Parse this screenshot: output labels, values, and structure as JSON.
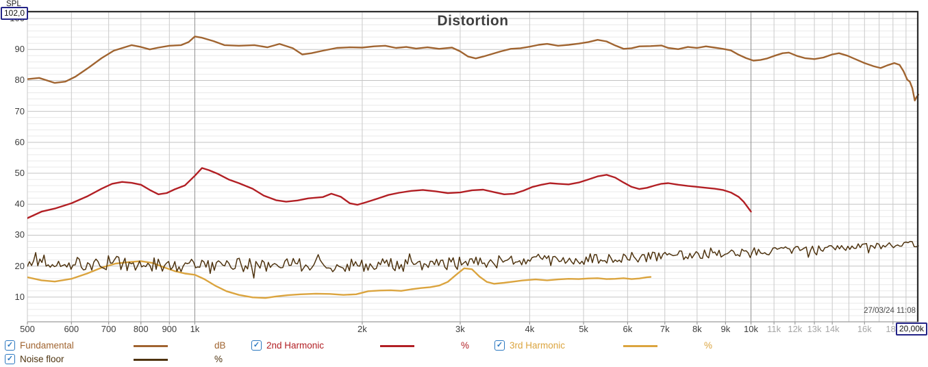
{
  "title": "Distortion",
  "date_label": "27/03/24 11:08",
  "y_axis": {
    "title": "SPL",
    "max_box": "102,0",
    "min": 2,
    "max": 102,
    "ticks": [
      100,
      90,
      80,
      70,
      60,
      50,
      40,
      30,
      20,
      10
    ],
    "minor_step": 2
  },
  "x_axis": {
    "max_box": "20,00k",
    "min": 500,
    "max": 20000,
    "scale": "log",
    "gridline_freqs": [
      500,
      600,
      700,
      800,
      900,
      1000,
      2000,
      3000,
      4000,
      5000,
      6000,
      7000,
      8000,
      9000,
      10000,
      11000,
      12000,
      13000,
      14000,
      15000,
      16000,
      17000,
      18000,
      19000,
      20000
    ],
    "dark_gridlines": [
      1000,
      10000
    ],
    "ticks": [
      {
        "f": 500,
        "label": "500"
      },
      {
        "f": 600,
        "label": "600"
      },
      {
        "f": 700,
        "label": "700"
      },
      {
        "f": 800,
        "label": "800"
      },
      {
        "f": 900,
        "label": "900"
      },
      {
        "f": 1000,
        "label": "1k"
      },
      {
        "f": 2000,
        "label": "2k"
      },
      {
        "f": 3000,
        "label": "3k"
      },
      {
        "f": 4000,
        "label": "4k"
      },
      {
        "f": 5000,
        "label": "5k"
      },
      {
        "f": 6000,
        "label": "6k"
      },
      {
        "f": 7000,
        "label": "7k"
      },
      {
        "f": 8000,
        "label": "8k"
      },
      {
        "f": 9000,
        "label": "9k"
      },
      {
        "f": 10000,
        "label": "10k"
      },
      {
        "f": 11000,
        "label": "11k",
        "muted": true
      },
      {
        "f": 12000,
        "label": "12k",
        "muted": true
      },
      {
        "f": 13000,
        "label": "13k",
        "muted": true
      },
      {
        "f": 14000,
        "label": "14k",
        "muted": true
      },
      {
        "f": 16000,
        "label": "16k",
        "muted": true
      },
      {
        "f": 18000,
        "label": "18k",
        "muted": true
      }
    ]
  },
  "colors": {
    "grid_minor": "#e9e9e9",
    "grid_major": "#c3c3c3",
    "grid_vert": "#c9c9c9",
    "grid_vert_dark": "#8f8f8f",
    "border_dark": "#2e2e2e",
    "axis_line": "#9a9a9a",
    "checkbox_blue": "#2a77c0"
  },
  "legend": {
    "items": [
      {
        "label": "Fundamental",
        "unit": "dB",
        "checked": true,
        "row": 0,
        "col": 0
      },
      {
        "label": "2nd Harmonic",
        "unit": "%",
        "checked": true,
        "row": 0,
        "col": 1
      },
      {
        "label": "3rd Harmonic",
        "unit": "%",
        "checked": true,
        "row": 0,
        "col": 2
      },
      {
        "label": "Noise floor",
        "unit": "%",
        "checked": true,
        "row": 1,
        "col": 0
      }
    ]
  },
  "chart_data": {
    "type": "line",
    "title": "Distortion",
    "x_scale": "log",
    "x_range": [
      500,
      20000
    ],
    "y_range": [
      2,
      102
    ],
    "ylabel": "SPL",
    "grid": true,
    "legend_position": "bottom",
    "series": [
      {
        "name": "Fundamental",
        "unit": "dB",
        "color": "#a06430",
        "width": 2.4,
        "points": [
          [
            500,
            80.4
          ],
          [
            525,
            80.8
          ],
          [
            560,
            79.2
          ],
          [
            585,
            79.6
          ],
          [
            610,
            81.2
          ],
          [
            645,
            84.2
          ],
          [
            680,
            87.2
          ],
          [
            715,
            89.6
          ],
          [
            745,
            90.6
          ],
          [
            770,
            91.4
          ],
          [
            800,
            90.8
          ],
          [
            830,
            90.0
          ],
          [
            860,
            90.6
          ],
          [
            900,
            91.2
          ],
          [
            945,
            91.4
          ],
          [
            975,
            92.4
          ],
          [
            1000,
            94.2
          ],
          [
            1030,
            93.8
          ],
          [
            1080,
            92.7
          ],
          [
            1130,
            91.4
          ],
          [
            1200,
            91.2
          ],
          [
            1280,
            91.4
          ],
          [
            1350,
            90.7
          ],
          [
            1420,
            91.8
          ],
          [
            1500,
            90.4
          ],
          [
            1560,
            88.4
          ],
          [
            1620,
            88.8
          ],
          [
            1700,
            89.6
          ],
          [
            1800,
            90.5
          ],
          [
            1900,
            90.7
          ],
          [
            2000,
            90.6
          ],
          [
            2100,
            91.0
          ],
          [
            2200,
            91.2
          ],
          [
            2300,
            90.5
          ],
          [
            2400,
            90.8
          ],
          [
            2500,
            90.3
          ],
          [
            2620,
            90.7
          ],
          [
            2750,
            90.2
          ],
          [
            2900,
            90.6
          ],
          [
            3000,
            89.4
          ],
          [
            3100,
            87.7
          ],
          [
            3200,
            87.1
          ],
          [
            3300,
            87.7
          ],
          [
            3400,
            88.4
          ],
          [
            3550,
            89.4
          ],
          [
            3700,
            90.2
          ],
          [
            3850,
            90.4
          ],
          [
            4000,
            90.9
          ],
          [
            4150,
            91.5
          ],
          [
            4300,
            91.8
          ],
          [
            4500,
            91.2
          ],
          [
            4700,
            91.5
          ],
          [
            4900,
            91.9
          ],
          [
            5100,
            92.4
          ],
          [
            5300,
            93.1
          ],
          [
            5500,
            92.6
          ],
          [
            5700,
            91.3
          ],
          [
            5900,
            90.2
          ],
          [
            6100,
            90.4
          ],
          [
            6300,
            91.0
          ],
          [
            6600,
            91.1
          ],
          [
            6900,
            91.3
          ],
          [
            7100,
            90.5
          ],
          [
            7400,
            90.1
          ],
          [
            7700,
            90.8
          ],
          [
            8000,
            90.5
          ],
          [
            8300,
            91.0
          ],
          [
            8600,
            90.6
          ],
          [
            8900,
            90.2
          ],
          [
            9200,
            89.7
          ],
          [
            9500,
            88.3
          ],
          [
            9800,
            87.2
          ],
          [
            10100,
            86.4
          ],
          [
            10400,
            86.6
          ],
          [
            10700,
            87.1
          ],
          [
            11000,
            87.9
          ],
          [
            11400,
            88.8
          ],
          [
            11700,
            89.0
          ],
          [
            12100,
            87.9
          ],
          [
            12500,
            87.2
          ],
          [
            13000,
            86.9
          ],
          [
            13500,
            87.4
          ],
          [
            14000,
            88.4
          ],
          [
            14400,
            88.8
          ],
          [
            14900,
            88.0
          ],
          [
            15400,
            86.9
          ],
          [
            16000,
            85.6
          ],
          [
            16600,
            84.6
          ],
          [
            17100,
            84.0
          ],
          [
            17600,
            84.9
          ],
          [
            18100,
            85.6
          ],
          [
            18500,
            85.0
          ],
          [
            18800,
            83.0
          ],
          [
            19100,
            80.2
          ],
          [
            19300,
            79.6
          ],
          [
            19500,
            77.5
          ],
          [
            19700,
            73.5
          ],
          [
            19850,
            74.6
          ],
          [
            20000,
            75.4
          ]
        ]
      },
      {
        "name": "2nd Harmonic",
        "unit": "%",
        "color": "#b21f24",
        "width": 2.4,
        "points": [
          [
            500,
            35.5
          ],
          [
            530,
            37.6
          ],
          [
            560,
            38.6
          ],
          [
            600,
            40.3
          ],
          [
            640,
            42.5
          ],
          [
            680,
            45.0
          ],
          [
            710,
            46.6
          ],
          [
            740,
            47.2
          ],
          [
            770,
            46.9
          ],
          [
            800,
            46.3
          ],
          [
            830,
            44.6
          ],
          [
            860,
            43.2
          ],
          [
            890,
            43.6
          ],
          [
            920,
            44.8
          ],
          [
            960,
            46.1
          ],
          [
            1000,
            49.2
          ],
          [
            1030,
            51.7
          ],
          [
            1060,
            51.0
          ],
          [
            1100,
            49.8
          ],
          [
            1150,
            48.0
          ],
          [
            1200,
            46.8
          ],
          [
            1270,
            45.0
          ],
          [
            1330,
            42.8
          ],
          [
            1400,
            41.3
          ],
          [
            1460,
            40.8
          ],
          [
            1530,
            41.2
          ],
          [
            1600,
            41.9
          ],
          [
            1700,
            42.3
          ],
          [
            1760,
            43.4
          ],
          [
            1830,
            42.4
          ],
          [
            1900,
            40.3
          ],
          [
            1960,
            39.8
          ],
          [
            2030,
            40.6
          ],
          [
            2130,
            41.8
          ],
          [
            2230,
            43.0
          ],
          [
            2330,
            43.7
          ],
          [
            2450,
            44.3
          ],
          [
            2570,
            44.6
          ],
          [
            2700,
            44.2
          ],
          [
            2850,
            43.6
          ],
          [
            3000,
            43.8
          ],
          [
            3150,
            44.5
          ],
          [
            3300,
            44.7
          ],
          [
            3450,
            43.9
          ],
          [
            3600,
            43.2
          ],
          [
            3750,
            43.4
          ],
          [
            3900,
            44.4
          ],
          [
            4050,
            45.6
          ],
          [
            4200,
            46.3
          ],
          [
            4350,
            46.8
          ],
          [
            4500,
            46.6
          ],
          [
            4700,
            46.4
          ],
          [
            4900,
            47.0
          ],
          [
            5100,
            48.0
          ],
          [
            5300,
            49.0
          ],
          [
            5500,
            49.5
          ],
          [
            5700,
            48.6
          ],
          [
            5900,
            47.0
          ],
          [
            6100,
            45.6
          ],
          [
            6300,
            44.9
          ],
          [
            6500,
            45.3
          ],
          [
            6700,
            46.0
          ],
          [
            6900,
            46.6
          ],
          [
            7100,
            46.8
          ],
          [
            7400,
            46.3
          ],
          [
            7700,
            45.9
          ],
          [
            8000,
            45.6
          ],
          [
            8300,
            45.3
          ],
          [
            8600,
            45.0
          ],
          [
            8900,
            44.6
          ],
          [
            9200,
            43.8
          ],
          [
            9500,
            42.4
          ],
          [
            9700,
            40.8
          ],
          [
            9850,
            39.2
          ],
          [
            10000,
            37.6
          ]
        ]
      },
      {
        "name": "3rd Harmonic",
        "unit": "%",
        "color": "#dba43e",
        "width": 2.4,
        "points": [
          [
            500,
            16.4
          ],
          [
            530,
            15.4
          ],
          [
            560,
            15.0
          ],
          [
            600,
            15.9
          ],
          [
            640,
            17.6
          ],
          [
            680,
            19.5
          ],
          [
            720,
            20.8
          ],
          [
            760,
            21.3
          ],
          [
            800,
            21.6
          ],
          [
            840,
            21.0
          ],
          [
            880,
            19.6
          ],
          [
            920,
            18.4
          ],
          [
            960,
            17.6
          ],
          [
            1000,
            17.2
          ],
          [
            1040,
            15.8
          ],
          [
            1090,
            13.6
          ],
          [
            1140,
            11.9
          ],
          [
            1200,
            10.7
          ],
          [
            1270,
            9.9
          ],
          [
            1340,
            9.7
          ],
          [
            1400,
            10.2
          ],
          [
            1470,
            10.6
          ],
          [
            1550,
            10.9
          ],
          [
            1650,
            11.1
          ],
          [
            1750,
            11.0
          ],
          [
            1850,
            10.7
          ],
          [
            1950,
            10.9
          ],
          [
            2050,
            11.9
          ],
          [
            2150,
            12.1
          ],
          [
            2250,
            12.2
          ],
          [
            2350,
            12.0
          ],
          [
            2450,
            12.5
          ],
          [
            2550,
            12.9
          ],
          [
            2650,
            13.2
          ],
          [
            2750,
            13.7
          ],
          [
            2850,
            14.9
          ],
          [
            2950,
            17.2
          ],
          [
            3050,
            19.3
          ],
          [
            3150,
            19.0
          ],
          [
            3250,
            16.6
          ],
          [
            3350,
            14.9
          ],
          [
            3450,
            14.3
          ],
          [
            3600,
            14.6
          ],
          [
            3750,
            15.0
          ],
          [
            3900,
            15.4
          ],
          [
            4100,
            15.7
          ],
          [
            4300,
            15.4
          ],
          [
            4500,
            15.7
          ],
          [
            4700,
            15.9
          ],
          [
            4900,
            15.8
          ],
          [
            5100,
            16.0
          ],
          [
            5300,
            16.1
          ],
          [
            5500,
            15.8
          ],
          [
            5700,
            15.9
          ],
          [
            5900,
            16.1
          ],
          [
            6100,
            15.8
          ],
          [
            6300,
            16.0
          ],
          [
            6500,
            16.4
          ],
          [
            6600,
            16.5
          ]
        ]
      },
      {
        "name": "Noise floor",
        "unit": "%",
        "color": "#4e330f",
        "width": 1.5,
        "generated": {
          "seed": 12,
          "n": 430,
          "spike_chance": 0.05,
          "spike_extra": 2.5,
          "base": [
            [
              500,
              21.0
            ],
            [
              700,
              21.0
            ],
            [
              900,
              20.2
            ],
            [
              1100,
              20.4
            ],
            [
              1500,
              20.2
            ],
            [
              2000,
              20.4
            ],
            [
              2500,
              20.7
            ],
            [
              3000,
              21.0
            ],
            [
              3500,
              21.3
            ],
            [
              4000,
              21.8
            ],
            [
              5000,
              22.3
            ],
            [
              6000,
              22.8
            ],
            [
              7000,
              23.3
            ],
            [
              8000,
              23.8
            ],
            [
              9000,
              24.2
            ],
            [
              10000,
              24.6
            ],
            [
              12000,
              25.2
            ],
            [
              14000,
              25.8
            ],
            [
              16000,
              26.3
            ],
            [
              18000,
              26.8
            ],
            [
              20000,
              27.2
            ]
          ],
          "jitter": [
            [
              500,
              2.6
            ],
            [
              1000,
              2.4
            ],
            [
              2000,
              2.2
            ],
            [
              4000,
              2.0
            ],
            [
              8000,
              1.5
            ],
            [
              12000,
              1.2
            ],
            [
              20000,
              1.0
            ]
          ]
        }
      }
    ]
  }
}
